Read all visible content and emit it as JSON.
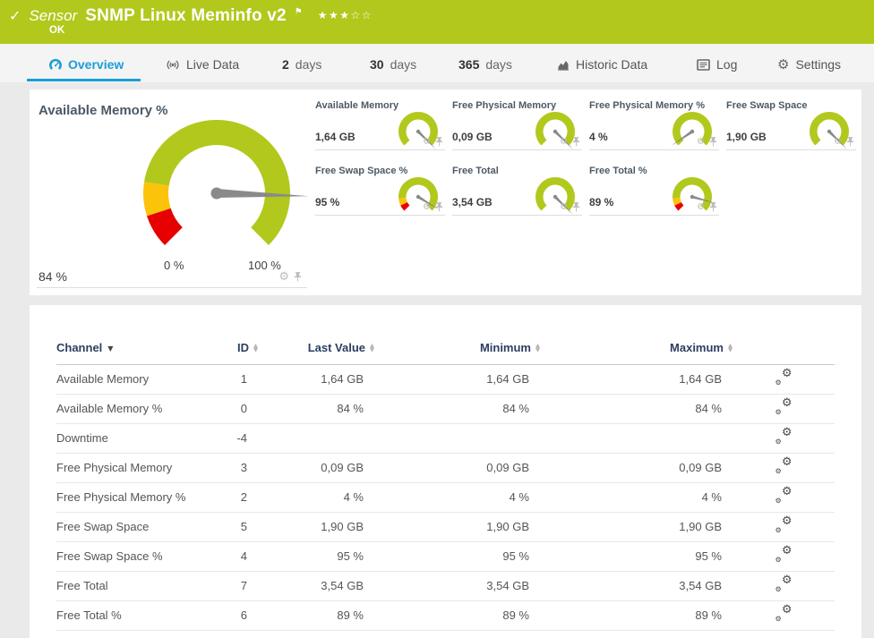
{
  "colors": {
    "status_green": "#b2c81c",
    "accent_blue": "#1b9dd9",
    "gauge_green": "#b2c81c",
    "gauge_yellow": "#fcc30b",
    "gauge_red": "#e60000",
    "needle_gray": "#8a8a8a",
    "header_navy": "#2d3e5f"
  },
  "icons": {
    "check": "✓",
    "flag": "⚑",
    "star_filled": "★",
    "star_empty": "☆",
    "gear": "⚙",
    "sort_down": "▼",
    "sort_up": "▲"
  },
  "header": {
    "kind_label": "Sensor",
    "title": "SNMP Linux Meminfo v2",
    "status_text": "OK",
    "rating": {
      "filled": 3,
      "total": 5
    }
  },
  "tabs": [
    {
      "id": "overview",
      "icon": "gauge-icon",
      "prefix": "",
      "label": "Overview",
      "active": true
    },
    {
      "id": "live-data",
      "icon": "broadcast-icon",
      "prefix": "",
      "label": "Live Data",
      "active": false
    },
    {
      "id": "2-days",
      "icon": "",
      "prefix": "2",
      "label": "days",
      "active": false
    },
    {
      "id": "30-days",
      "icon": "",
      "prefix": "30",
      "label": "days",
      "active": false
    },
    {
      "id": "365-days",
      "icon": "",
      "prefix": "365",
      "label": "days",
      "active": false
    },
    {
      "id": "historic-data",
      "icon": "area-chart-icon",
      "prefix": "",
      "label": "Historic Data",
      "active": false
    },
    {
      "id": "log",
      "icon": "log-icon",
      "prefix": "",
      "label": "Log",
      "active": false
    },
    {
      "id": "settings",
      "icon": "gear-icon",
      "prefix": "",
      "label": "Settings",
      "active": false
    }
  ],
  "gauge_panel": {
    "primary": {
      "title": "Available Memory %",
      "value": "84 %",
      "percent": 84,
      "scale_min_label": "0 %",
      "scale_max_label": "100 %",
      "has_limit_zones": true
    },
    "minis": [
      {
        "title": "Available Memory",
        "value": "1,64 GB",
        "percent": 100,
        "has_limit_zones": false
      },
      {
        "title": "Free Physical Memory",
        "value": "0,09 GB",
        "percent": 100,
        "has_limit_zones": false
      },
      {
        "title": "Free Physical Memory %",
        "value": "4 %",
        "percent": 4,
        "has_limit_zones": false
      },
      {
        "title": "Free Swap Space",
        "value": "1,90 GB",
        "percent": 100,
        "has_limit_zones": false
      },
      {
        "title": "Free Swap Space %",
        "value": "95 %",
        "percent": 95,
        "has_limit_zones": true
      },
      {
        "title": "Free Total",
        "value": "3,54 GB",
        "percent": 100,
        "has_limit_zones": false
      },
      {
        "title": "Free Total %",
        "value": "89 %",
        "percent": 89,
        "has_limit_zones": true
      }
    ],
    "cell_icons": [
      "gear-icon",
      "pin-icon"
    ]
  },
  "table": {
    "columns": [
      {
        "label": "Channel",
        "sort": "down",
        "align": "left"
      },
      {
        "label": "ID",
        "sort": "both",
        "align": "right"
      },
      {
        "label": "Last Value",
        "sort": "both",
        "align": "right"
      },
      {
        "label": "Minimum",
        "sort": "both",
        "align": "right"
      },
      {
        "label": "Maximum",
        "sort": "both",
        "align": "right"
      },
      {
        "label": "",
        "sort": "none",
        "align": "center"
      }
    ],
    "rows": [
      {
        "channel": "Available Memory",
        "id": "1",
        "last": "1,64 GB",
        "min": "1,64 GB",
        "max": "1,64 GB"
      },
      {
        "channel": "Available Memory %",
        "id": "0",
        "last": "84 %",
        "min": "84 %",
        "max": "84 %"
      },
      {
        "channel": "Downtime",
        "id": "-4",
        "last": "",
        "min": "",
        "max": ""
      },
      {
        "channel": "Free Physical Memory",
        "id": "3",
        "last": "0,09 GB",
        "min": "0,09 GB",
        "max": "0,09 GB"
      },
      {
        "channel": "Free Physical Memory %",
        "id": "2",
        "last": "4 %",
        "min": "4 %",
        "max": "4 %"
      },
      {
        "channel": "Free Swap Space",
        "id": "5",
        "last": "1,90 GB",
        "min": "1,90 GB",
        "max": "1,90 GB"
      },
      {
        "channel": "Free Swap Space %",
        "id": "4",
        "last": "95 %",
        "min": "95 %",
        "max": "95 %"
      },
      {
        "channel": "Free Total",
        "id": "7",
        "last": "3,54 GB",
        "min": "3,54 GB",
        "max": "3,54 GB"
      },
      {
        "channel": "Free Total %",
        "id": "6",
        "last": "89 %",
        "min": "89 %",
        "max": "89 %"
      }
    ],
    "row_action_icon": "channel-settings-gears-icon"
  }
}
